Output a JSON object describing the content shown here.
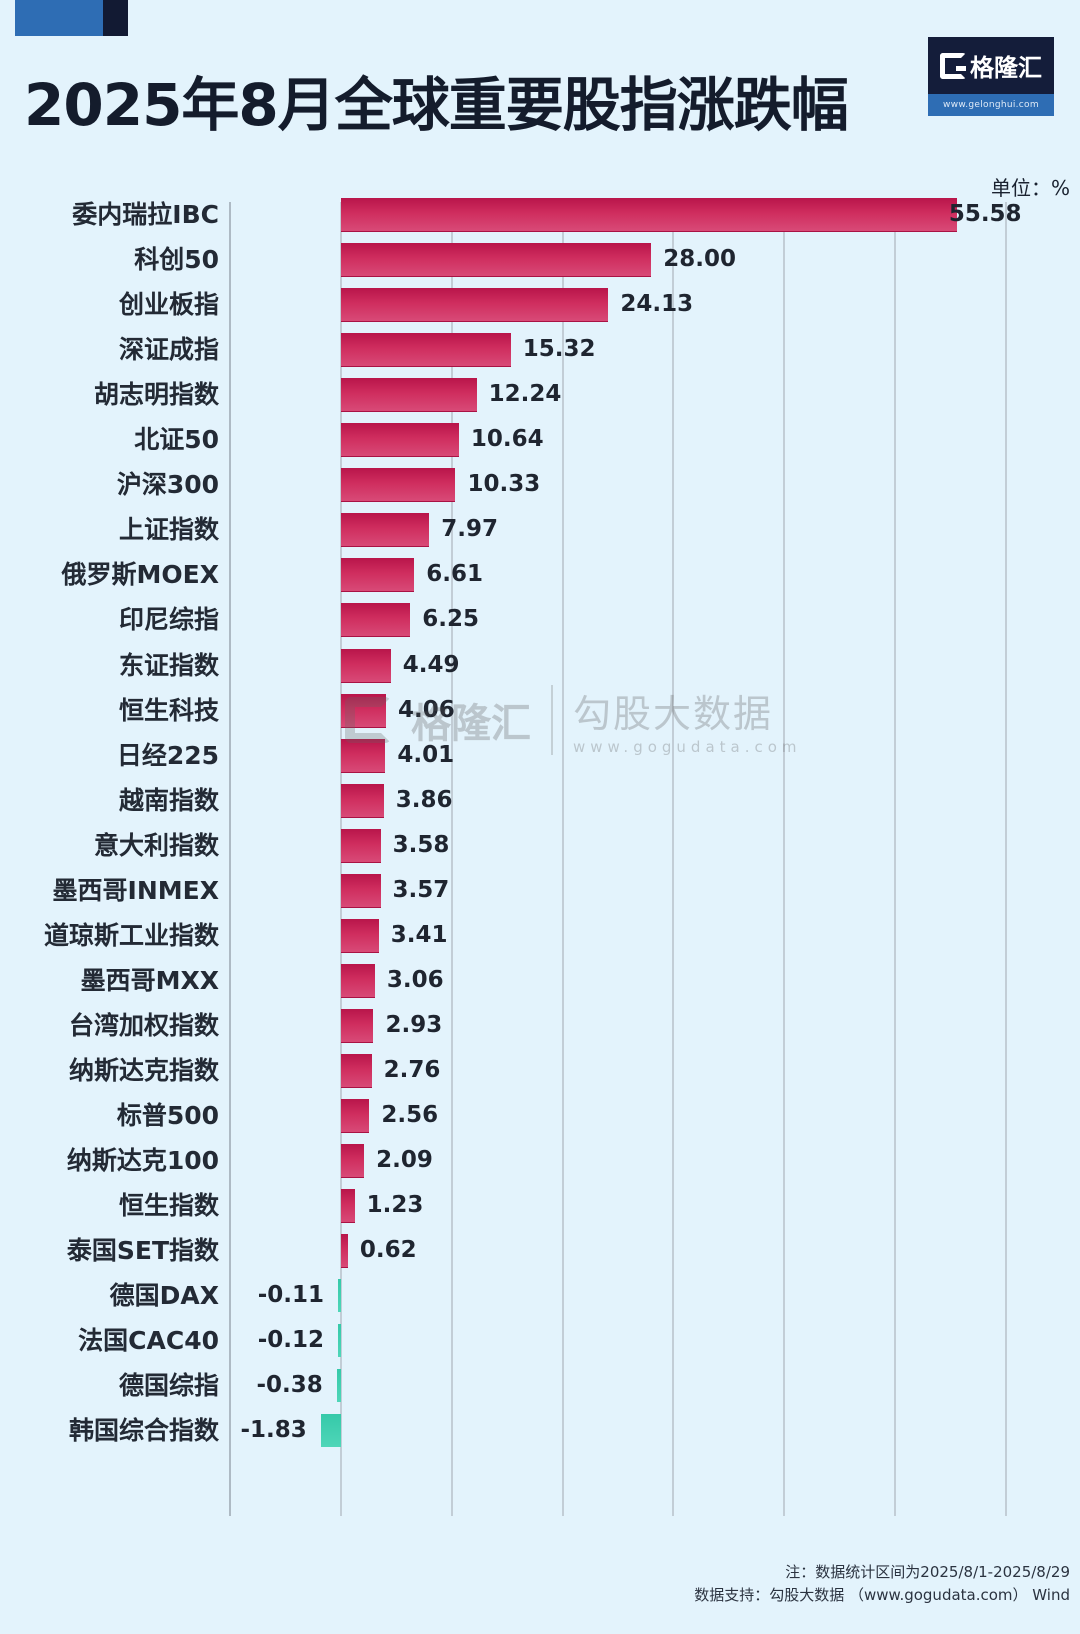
{
  "header": {
    "title": "2025年8月全球重要股指涨跌幅",
    "logo_name": "格隆汇",
    "logo_url": "www.gelonghui.com",
    "unit": "单位：%"
  },
  "watermark": {
    "left_name": "格隆汇",
    "left_url": "gelonghui.com",
    "right_name": "勾股大数据",
    "right_url": "www.gogudata.com"
  },
  "footer": {
    "note": "注：数据统计区间为2025/8/1-2025/8/29",
    "source": "数据支持：勾股大数据 （www.gogudata.com） Wind"
  },
  "colors": {
    "positive": "#c91f55",
    "negative": "#3ccfae",
    "background": "#e3f3fc",
    "title": "#141c2c",
    "accent_blue": "#2e6db4",
    "accent_navy": "#121a33"
  },
  "chart_data": {
    "type": "bar",
    "orientation": "horizontal",
    "title": "2025年8月全球重要股指涨跌幅",
    "xlabel": "",
    "ylabel": "",
    "unit": "%",
    "xlim": [
      -10,
      60
    ],
    "grid": true,
    "gridlines": [
      -10,
      0,
      10,
      20,
      30,
      40,
      50,
      60
    ],
    "legend": null,
    "categories": [
      "委内瑞拉IBC",
      "科创50",
      "创业板指",
      "深证成指",
      "胡志明指数",
      "北证50",
      "沪深300",
      "上证指数",
      "俄罗斯MOEX",
      "印尼综指",
      "东证指数",
      "恒生科技",
      "日经225",
      "越南指数",
      "意大利指数",
      "墨西哥INMEX",
      "道琼斯工业指数",
      "墨西哥MXX",
      "台湾加权指数",
      "纳斯达克指数",
      "标普500",
      "纳斯达克100",
      "恒生指数",
      "泰国SET指数",
      "德国DAX",
      "法国CAC40",
      "德国综指",
      "韩国综合指数"
    ],
    "values": [
      55.58,
      28.0,
      24.13,
      15.32,
      12.24,
      10.64,
      10.33,
      7.97,
      6.61,
      6.25,
      4.49,
      4.06,
      4.01,
      3.86,
      3.58,
      3.57,
      3.41,
      3.06,
      2.93,
      2.76,
      2.56,
      2.09,
      1.23,
      0.62,
      -0.11,
      -0.12,
      -0.38,
      -1.83
    ],
    "value_labels": [
      "55.58",
      "28.00",
      "24.13",
      "15.32",
      "12.24",
      "10.64",
      "10.33",
      "7.97",
      "6.61",
      "6.25",
      "4.49",
      "4.06",
      "4.01",
      "3.86",
      "3.58",
      "3.57",
      "3.41",
      "3.06",
      "2.93",
      "2.76",
      "2.56",
      "2.09",
      "1.23",
      "0.62",
      "-0.11",
      "-0.12",
      "-0.38",
      "-1.83"
    ]
  }
}
